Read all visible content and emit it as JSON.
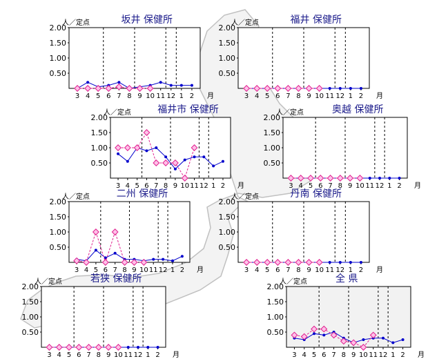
{
  "unit_label": "人／定点",
  "month_label": "月",
  "chart_data": [
    {
      "id": "sakai",
      "type": "line",
      "title": "坂井 保健所",
      "categories": [
        "3",
        "4",
        "5",
        "6",
        "7",
        "8",
        "9",
        "10",
        "11",
        "12",
        "1",
        "2"
      ],
      "ylim": [
        0,
        2.0
      ],
      "yticks": [
        "2.00",
        "1.50",
        "1.00",
        "0.50"
      ],
      "series": [
        {
          "values": [
            0.0,
            0.2,
            0.05,
            0.1,
            0.2,
            0.0,
            0.05,
            0.1,
            0.2,
            0.1,
            0.1,
            0.1
          ]
        },
        {
          "values": [
            0.0,
            0.0,
            0.0,
            0.0,
            0.05,
            0.0,
            0.0,
            0.0,
            null,
            null,
            null,
            null
          ]
        }
      ]
    },
    {
      "id": "fukui",
      "type": "line",
      "title": "福井 保健所",
      "categories": [
        "3",
        "4",
        "5",
        "6",
        "7",
        "8",
        "9",
        "10",
        "11",
        "12",
        "1",
        "2"
      ],
      "ylim": [
        0,
        2.0
      ],
      "yticks": [
        "2.00",
        "1.50",
        "1.00",
        "0.50"
      ],
      "series": [
        {
          "values": [
            0,
            0,
            0,
            0,
            0,
            0,
            0,
            0,
            0,
            0,
            0,
            0
          ]
        },
        {
          "values": [
            0,
            0,
            0,
            0,
            0,
            0,
            0,
            0,
            null,
            null,
            null,
            null
          ]
        }
      ]
    },
    {
      "id": "fukuishi",
      "type": "line",
      "title": "福井市 保健所",
      "categories": [
        "3",
        "4",
        "5",
        "6",
        "7",
        "8",
        "9",
        "10",
        "11",
        "12",
        "1",
        "2"
      ],
      "ylim": [
        0,
        2.0
      ],
      "yticks": [
        "2.00",
        "1.50",
        "1.00",
        "0.50"
      ],
      "series": [
        {
          "values": [
            0.8,
            0.55,
            1.0,
            0.9,
            1.0,
            0.7,
            0.3,
            0.6,
            0.7,
            0.7,
            0.4,
            0.55
          ]
        },
        {
          "values": [
            1.0,
            1.0,
            1.0,
            1.5,
            0.5,
            0.5,
            0.5,
            0.0,
            1.0,
            null,
            null,
            null
          ]
        }
      ]
    },
    {
      "id": "okuetsu",
      "type": "line",
      "title": "奥越 保健所",
      "categories": [
        "3",
        "4",
        "5",
        "6",
        "7",
        "8",
        "9",
        "10",
        "11",
        "12",
        "1",
        "2"
      ],
      "ylim": [
        0,
        2.0
      ],
      "yticks": [
        "2.00",
        "1.50",
        "1.00",
        "0.50"
      ],
      "series": [
        {
          "values": [
            0,
            0,
            0,
            0,
            0,
            0,
            0,
            0,
            0,
            0,
            0,
            0
          ]
        },
        {
          "values": [
            0,
            0,
            0,
            0,
            0,
            0,
            0,
            0,
            null,
            null,
            null,
            null
          ]
        }
      ]
    },
    {
      "id": "nishu",
      "type": "line",
      "title": "二州 保健所",
      "categories": [
        "3",
        "4",
        "5",
        "6",
        "7",
        "8",
        "9",
        "10",
        "11",
        "12",
        "1",
        "2"
      ],
      "ylim": [
        0,
        2.0
      ],
      "yticks": [
        "2.00",
        "1.50",
        "1.00",
        "0.50"
      ],
      "series": [
        {
          "values": [
            0.1,
            0.05,
            0.4,
            0.15,
            0.3,
            0.1,
            0.1,
            0.05,
            0.1,
            0.1,
            0.05,
            0.2
          ]
        },
        {
          "values": [
            0.05,
            0.0,
            1.0,
            0.0,
            1.0,
            0.0,
            0.0,
            0.0,
            null,
            null,
            null,
            null
          ]
        }
      ]
    },
    {
      "id": "tannan",
      "type": "line",
      "title": "丹南 保健所",
      "categories": [
        "3",
        "4",
        "5",
        "6",
        "7",
        "8",
        "9",
        "10",
        "11",
        "12",
        "1",
        "2"
      ],
      "ylim": [
        0,
        2.0
      ],
      "yticks": [
        "2.00",
        "1.50",
        "1.00",
        "0.50"
      ],
      "series": [
        {
          "values": [
            0,
            0,
            0,
            0,
            0,
            0,
            0,
            0,
            0,
            0,
            0,
            0
          ]
        },
        {
          "values": [
            0,
            0,
            0,
            0,
            0,
            0,
            0,
            0,
            null,
            null,
            null,
            null
          ]
        }
      ]
    },
    {
      "id": "wakasa",
      "type": "line",
      "title": "若狭 保健所",
      "categories": [
        "3",
        "4",
        "5",
        "6",
        "7",
        "8",
        "9",
        "10",
        "11",
        "12",
        "1",
        "2"
      ],
      "ylim": [
        0,
        2.0
      ],
      "yticks": [
        "2.00",
        "1.50",
        "1.00",
        "0.50"
      ],
      "series": [
        {
          "values": [
            0,
            0,
            0,
            0,
            0,
            0,
            0,
            0,
            0,
            0,
            0,
            0
          ]
        },
        {
          "values": [
            0,
            0,
            0,
            0,
            0,
            0,
            0,
            0,
            null,
            null,
            null,
            null
          ]
        }
      ]
    },
    {
      "id": "zenken",
      "type": "line",
      "title": "全 県",
      "categories": [
        "3",
        "4",
        "5",
        "6",
        "7",
        "8",
        "9",
        "10",
        "11",
        "12",
        "1",
        "2"
      ],
      "ylim": [
        0,
        2.0
      ],
      "yticks": [
        "2.00",
        "1.50",
        "1.00",
        "0.50"
      ],
      "series": [
        {
          "values": [
            0.3,
            0.25,
            0.45,
            0.4,
            0.5,
            0.3,
            0.15,
            0.25,
            0.3,
            0.3,
            0.15,
            0.25
          ]
        },
        {
          "values": [
            0.4,
            0.35,
            0.6,
            0.6,
            0.4,
            0.2,
            0.15,
            0.0,
            0.4,
            null,
            null,
            null
          ]
        }
      ]
    }
  ]
}
